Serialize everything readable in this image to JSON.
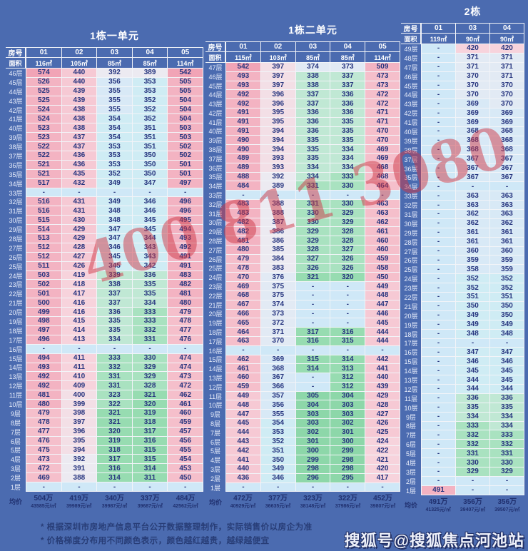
{
  "watermark": "400 811 3080",
  "branding": "搜狐号@搜狐焦点河池站",
  "footnotes": [
    "* 根据深圳市房地产信息平台公开数据整理制作，实际销售价以房企为准",
    "* 价格梯度分布用不同颜色表示，颜色越红越贵，越绿越便宜"
  ],
  "labels": {
    "room_no": "房号",
    "area": "面积",
    "floor_suffix": "层",
    "avg_price": "均价"
  },
  "colors": {
    "background": "#4b6bb0",
    "cell_text": "#27357f",
    "label_text": "#e9eefb",
    "watermark_red": "#cd3746",
    "expensive_pink": "#f1a4b6",
    "cheap_green": "#8dd7a9",
    "empty_blue": "#cfe8f7"
  },
  "tables": [
    {
      "title": "1栋一单元",
      "columns": [
        "01",
        "02",
        "03",
        "04",
        "05"
      ],
      "areas": [
        "116㎡",
        "105㎡",
        "85㎡",
        "85㎡",
        "114㎡"
      ],
      "rows": [
        [
          46,
          "574",
          "440",
          "392",
          "389",
          "542"
        ],
        [
          45,
          "526",
          "440",
          "356",
          "353",
          "505"
        ],
        [
          44,
          "525",
          "439",
          "355",
          "353",
          "505"
        ],
        [
          43,
          "525",
          "439",
          "355",
          "352",
          "504"
        ],
        [
          42,
          "524",
          "438",
          "355",
          "352",
          "504"
        ],
        [
          41,
          "524",
          "438",
          "354",
          "352",
          "504"
        ],
        [
          40,
          "523",
          "438",
          "354",
          "351",
          "503"
        ],
        [
          39,
          "523",
          "437",
          "354",
          "351",
          "503"
        ],
        [
          38,
          "522",
          "437",
          "353",
          "351",
          "502"
        ],
        [
          37,
          "522",
          "436",
          "353",
          "350",
          "502"
        ],
        [
          36,
          "521",
          "436",
          "353",
          "350",
          "501"
        ],
        [
          35,
          "521",
          "435",
          "352",
          "350",
          "501"
        ],
        [
          34,
          "517",
          "432",
          "349",
          "347",
          "497"
        ],
        [
          33,
          "-",
          "-",
          "-",
          "-",
          "-"
        ],
        [
          32,
          "516",
          "431",
          "349",
          "346",
          "496"
        ],
        [
          31,
          "516",
          "431",
          "348",
          "346",
          "496"
        ],
        [
          30,
          "515",
          "430",
          "348",
          "345",
          "495"
        ],
        [
          29,
          "514",
          "429",
          "347",
          "345",
          "494"
        ],
        [
          28,
          "513",
          "429",
          "347",
          "344",
          "493"
        ],
        [
          27,
          "512",
          "428",
          "346",
          "343",
          "492"
        ],
        [
          26,
          "512",
          "427",
          "345",
          "343",
          "491"
        ],
        [
          25,
          "511",
          "426",
          "345",
          "342",
          "491"
        ],
        [
          24,
          "503",
          "419",
          "339",
          "336",
          "483"
        ],
        [
          23,
          "502",
          "418",
          "338",
          "335",
          "482"
        ],
        [
          22,
          "501",
          "417",
          "337",
          "335",
          "481"
        ],
        [
          21,
          "500",
          "416",
          "337",
          "334",
          "480"
        ],
        [
          20,
          "499",
          "416",
          "336",
          "333",
          "479"
        ],
        [
          19,
          "498",
          "415",
          "335",
          "333",
          "478"
        ],
        [
          18,
          "497",
          "414",
          "335",
          "332",
          "477"
        ],
        [
          17,
          "496",
          "413",
          "334",
          "331",
          "476"
        ],
        [
          16,
          "-",
          "-",
          "-",
          "-",
          "-"
        ],
        [
          15,
          "494",
          "411",
          "333",
          "330",
          "474"
        ],
        [
          14,
          "493",
          "411",
          "332",
          "329",
          "474"
        ],
        [
          13,
          "492",
          "410",
          "331",
          "329",
          "473"
        ],
        [
          12,
          "492",
          "409",
          "331",
          "328",
          "472"
        ],
        [
          11,
          "481",
          "400",
          "323",
          "321",
          "462"
        ],
        [
          10,
          "480",
          "399",
          "322",
          "320",
          "461"
        ],
        [
          9,
          "479",
          "398",
          "321",
          "319",
          "460"
        ],
        [
          8,
          "478",
          "397",
          "321",
          "318",
          "459"
        ],
        [
          7,
          "477",
          "396",
          "320",
          "317",
          "457"
        ],
        [
          6,
          "476",
          "395",
          "319",
          "316",
          "456"
        ],
        [
          5,
          "475",
          "394",
          "318",
          "315",
          "455"
        ],
        [
          4,
          "473",
          "392",
          "317",
          "315",
          "454"
        ],
        [
          3,
          "472",
          "391",
          "316",
          "314",
          "453"
        ],
        [
          2,
          "469",
          "388",
          "314",
          "311",
          "450"
        ],
        [
          1,
          "-",
          "-",
          "-",
          "-",
          "-"
        ]
      ],
      "avg": [
        [
          "504万",
          "43585元/㎡"
        ],
        [
          "419万",
          "39989元/㎡"
        ],
        [
          "340万",
          "39987元/㎡"
        ],
        [
          "337万",
          "39687元/㎡"
        ],
        [
          "484万",
          "42562元/㎡"
        ]
      ]
    },
    {
      "title": "1栋二单元",
      "columns": [
        "01",
        "02",
        "03",
        "04",
        "05"
      ],
      "areas": [
        "115㎡",
        "103㎡",
        "85㎡",
        "85㎡",
        "114㎡"
      ],
      "rows": [
        [
          47,
          "542",
          "397",
          "374",
          "373",
          "509"
        ],
        [
          46,
          "493",
          "397",
          "338",
          "337",
          "473"
        ],
        [
          45,
          "493",
          "397",
          "338",
          "337",
          "473"
        ],
        [
          44,
          "492",
          "396",
          "337",
          "336",
          "472"
        ],
        [
          43,
          "492",
          "396",
          "337",
          "336",
          "472"
        ],
        [
          42,
          "491",
          "395",
          "336",
          "336",
          "471"
        ],
        [
          41,
          "491",
          "395",
          "336",
          "335",
          "471"
        ],
        [
          40,
          "491",
          "394",
          "336",
          "335",
          "470"
        ],
        [
          39,
          "490",
          "394",
          "335",
          "335",
          "470"
        ],
        [
          38,
          "490",
          "394",
          "335",
          "334",
          "469"
        ],
        [
          37,
          "489",
          "393",
          "335",
          "334",
          "469"
        ],
        [
          36,
          "489",
          "393",
          "334",
          "334",
          "468"
        ],
        [
          35,
          "488",
          "392",
          "334",
          "333",
          "468"
        ],
        [
          34,
          "484",
          "389",
          "331",
          "330",
          "464"
        ],
        [
          33,
          "-",
          "-",
          "-",
          "-",
          "-"
        ],
        [
          32,
          "483",
          "388",
          "331",
          "330",
          "463"
        ],
        [
          31,
          "483",
          "388",
          "330",
          "329",
          "463"
        ],
        [
          30,
          "482",
          "387",
          "330",
          "329",
          "462"
        ],
        [
          29,
          "482",
          "386",
          "329",
          "328",
          "461"
        ],
        [
          28,
          "481",
          "386",
          "329",
          "328",
          "460"
        ],
        [
          27,
          "480",
          "385",
          "328",
          "327",
          "460"
        ],
        [
          26,
          "479",
          "384",
          "327",
          "326",
          "459"
        ],
        [
          25,
          "478",
          "383",
          "326",
          "326",
          "458"
        ],
        [
          24,
          "470",
          "376",
          "321",
          "320",
          "450"
        ],
        [
          23,
          "469",
          "375",
          "-",
          "-",
          "449"
        ],
        [
          22,
          "468",
          "375",
          "-",
          "-",
          "448"
        ],
        [
          21,
          "467",
          "374",
          "-",
          "-",
          "447"
        ],
        [
          20,
          "466",
          "373",
          "-",
          "-",
          "446"
        ],
        [
          19,
          "465",
          "372",
          "-",
          "-",
          "445"
        ],
        [
          18,
          "464",
          "371",
          "317",
          "316",
          "444"
        ],
        [
          17,
          "463",
          "370",
          "316",
          "315",
          "444"
        ],
        [
          16,
          "-",
          "-",
          "-",
          "-",
          "-"
        ],
        [
          15,
          "462",
          "369",
          "315",
          "314",
          "442"
        ],
        [
          14,
          "461",
          "368",
          "314",
          "313",
          "441"
        ],
        [
          13,
          "460",
          "367",
          "-",
          "312",
          "440"
        ],
        [
          12,
          "459",
          "366",
          "-",
          "312",
          "439"
        ],
        [
          11,
          "449",
          "357",
          "305",
          "304",
          "429"
        ],
        [
          10,
          "448",
          "356",
          "304",
          "303",
          "428"
        ],
        [
          9,
          "447",
          "355",
          "303",
          "303",
          "427"
        ],
        [
          8,
          "445",
          "354",
          "303",
          "302",
          "426"
        ],
        [
          7,
          "444",
          "353",
          "302",
          "301",
          "425"
        ],
        [
          6,
          "443",
          "352",
          "301",
          "300",
          "424"
        ],
        [
          5,
          "442",
          "351",
          "300",
          "299",
          "422"
        ],
        [
          4,
          "441",
          "350",
          "299",
          "298",
          "421"
        ],
        [
          3,
          "440",
          "349",
          "298",
          "298",
          "420"
        ],
        [
          2,
          "436",
          "346",
          "296",
          "295",
          "417"
        ],
        [
          1,
          "-",
          "-",
          "-",
          "-",
          "-"
        ]
      ],
      "avg": [
        [
          "472万",
          "40929元/㎡"
        ],
        [
          "377万",
          "36635元/㎡"
        ],
        [
          "323万",
          "38148元/㎡"
        ],
        [
          "322万",
          "37986元/㎡"
        ],
        [
          "452万",
          "39807元/㎡"
        ]
      ]
    },
    {
      "title": "2栋",
      "columns": [
        "01",
        "03",
        "04"
      ],
      "areas": [
        "119㎡",
        "90㎡",
        "90㎡"
      ],
      "rows": [
        [
          49,
          "-",
          "420",
          "420"
        ],
        [
          48,
          "-",
          "371",
          "371"
        ],
        [
          47,
          "-",
          "371",
          "371"
        ],
        [
          46,
          "-",
          "370",
          "371"
        ],
        [
          45,
          "-",
          "370",
          "370"
        ],
        [
          44,
          "-",
          "370",
          "370"
        ],
        [
          43,
          "-",
          "369",
          "370"
        ],
        [
          42,
          "-",
          "369",
          "369"
        ],
        [
          41,
          "-",
          "369",
          "369"
        ],
        [
          40,
          "-",
          "368",
          "368"
        ],
        [
          39,
          "-",
          "368",
          "368"
        ],
        [
          38,
          "-",
          "368",
          "368"
        ],
        [
          37,
          "-",
          "367",
          "367"
        ],
        [
          36,
          "-",
          "367",
          "367"
        ],
        [
          35,
          "-",
          "367",
          "367"
        ],
        [
          34,
          "-",
          "-",
          "-"
        ],
        [
          33,
          "-",
          "363",
          "363"
        ],
        [
          32,
          "-",
          "363",
          "363"
        ],
        [
          31,
          "-",
          "362",
          "363"
        ],
        [
          30,
          "-",
          "362",
          "362"
        ],
        [
          29,
          "-",
          "361",
          "361"
        ],
        [
          28,
          "-",
          "361",
          "361"
        ],
        [
          27,
          "-",
          "360",
          "360"
        ],
        [
          26,
          "-",
          "359",
          "359"
        ],
        [
          25,
          "-",
          "358",
          "359"
        ],
        [
          24,
          "-",
          "352",
          "352"
        ],
        [
          23,
          "-",
          "352",
          "352"
        ],
        [
          22,
          "-",
          "351",
          "351"
        ],
        [
          21,
          "-",
          "350",
          "350"
        ],
        [
          20,
          "-",
          "349",
          "350"
        ],
        [
          19,
          "-",
          "349",
          "349"
        ],
        [
          18,
          "-",
          "348",
          "348"
        ],
        [
          17,
          "-",
          "-",
          "-"
        ],
        [
          16,
          "-",
          "347",
          "347"
        ],
        [
          15,
          "-",
          "346",
          "346"
        ],
        [
          14,
          "-",
          "345",
          "345"
        ],
        [
          13,
          "-",
          "344",
          "345"
        ],
        [
          12,
          "-",
          "344",
          "344"
        ],
        [
          11,
          "-",
          "336",
          "336"
        ],
        [
          10,
          "-",
          "335",
          "335"
        ],
        [
          9,
          "-",
          "334",
          "334"
        ],
        [
          8,
          "-",
          "333",
          "334"
        ],
        [
          7,
          "-",
          "332",
          "333"
        ],
        [
          6,
          "-",
          "332",
          "332"
        ],
        [
          5,
          "-",
          "331",
          "331"
        ],
        [
          4,
          "-",
          "330",
          "330"
        ],
        [
          3,
          "-",
          "329",
          "329"
        ],
        [
          2,
          "-",
          "-",
          "-"
        ],
        [
          1,
          "491",
          "-",
          "-"
        ]
      ],
      "avg": [
        [
          "491万",
          "41325元/㎡"
        ],
        [
          "356万",
          "39407元/㎡"
        ],
        [
          "356万",
          "39507元/㎡"
        ]
      ]
    }
  ]
}
